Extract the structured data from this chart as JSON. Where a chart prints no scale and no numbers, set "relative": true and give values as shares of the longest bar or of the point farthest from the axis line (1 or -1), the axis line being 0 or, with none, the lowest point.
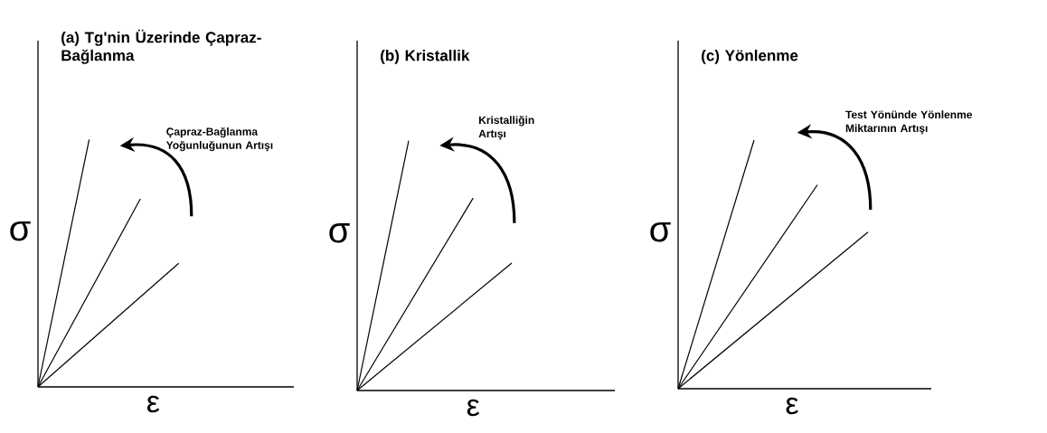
{
  "chart_data": [
    {
      "type": "line",
      "relative": true,
      "title": "(a) Tg'nin Üzerinde Çapraz-Bağlanma",
      "xlabel": "ε",
      "ylabel": "σ",
      "annotations": [
        "Çapraz-Bağlanma Yoğunluğunun Artışı"
      ],
      "categories": [
        null,
        null,
        null,
        null,
        null,
        null,
        null,
        null,
        null,
        null,
        null,
        null,
        null,
        null,
        null,
        null,
        null,
        null,
        null,
        null,
        null
      ],
      "series": [
        {
          "color": "#000000",
          "values": [
            0,
            null,
            null,
            null,
            1.0,
            null,
            null,
            null,
            null,
            null,
            null,
            null,
            null,
            null,
            null,
            null,
            null,
            null,
            null,
            null,
            null
          ]
        },
        {
          "color": "#000000",
          "values": [
            0,
            null,
            null,
            null,
            null,
            null,
            null,
            null,
            0.76,
            null,
            null,
            null,
            null,
            null,
            null,
            null,
            null,
            null,
            null,
            null,
            null
          ]
        },
        {
          "color": "#000000",
          "values": [
            0,
            null,
            null,
            null,
            null,
            null,
            null,
            null,
            null,
            null,
            null,
            0.5,
            null,
            null,
            null,
            null,
            null,
            null,
            null,
            null,
            null
          ]
        }
      ]
    },
    {
      "type": "line",
      "relative": true,
      "title": "(b) Kristallik",
      "xlabel": "ε",
      "ylabel": "σ",
      "annotations": [
        "Kristalliğin Artışı"
      ],
      "categories": [
        null,
        null,
        null,
        null,
        null,
        null,
        null,
        null,
        null,
        null,
        null,
        null,
        null,
        null,
        null,
        null,
        null,
        null,
        null,
        null,
        null
      ],
      "series": [
        {
          "color": "#000000",
          "values": [
            0,
            null,
            null,
            null,
            1.0,
            null,
            null,
            null,
            null,
            null,
            null,
            null,
            null,
            null,
            null,
            null,
            null,
            null,
            null,
            null,
            null
          ]
        },
        {
          "color": "#000000",
          "values": [
            0,
            null,
            null,
            null,
            null,
            null,
            null,
            null,
            null,
            0.77,
            null,
            null,
            null,
            null,
            null,
            null,
            null,
            null,
            null,
            null,
            null
          ]
        },
        {
          "color": "#000000",
          "values": [
            0,
            null,
            null,
            null,
            null,
            null,
            null,
            null,
            null,
            null,
            null,
            null,
            0.51,
            null,
            null,
            null,
            null,
            null,
            null,
            null,
            null
          ]
        }
      ]
    },
    {
      "type": "line",
      "relative": true,
      "title": "(c) Yönlenme",
      "xlabel": "ε",
      "ylabel": "σ",
      "annotations": [
        "Test Yönünde Yönlenme Miktarının Artışı"
      ],
      "categories": [
        null,
        null,
        null,
        null,
        null,
        null,
        null,
        null,
        null,
        null,
        null,
        null,
        null,
        null,
        null,
        null,
        null,
        null,
        null,
        null,
        null
      ],
      "series": [
        {
          "color": "#000000",
          "values": [
            0,
            null,
            null,
            null,
            null,
            null,
            1.0,
            null,
            null,
            null,
            null,
            null,
            null,
            null,
            null,
            null,
            null,
            null,
            null,
            null,
            null
          ]
        },
        {
          "color": "#000000",
          "values": [
            0,
            null,
            null,
            null,
            null,
            null,
            null,
            null,
            null,
            null,
            null,
            0.82,
            null,
            null,
            null,
            null,
            null,
            null,
            null,
            null,
            null
          ]
        },
        {
          "color": "#000000",
          "values": [
            0,
            null,
            null,
            null,
            null,
            null,
            null,
            null,
            null,
            null,
            null,
            null,
            null,
            null,
            null,
            0.63,
            null,
            null,
            null,
            null,
            null
          ]
        }
      ]
    }
  ]
}
